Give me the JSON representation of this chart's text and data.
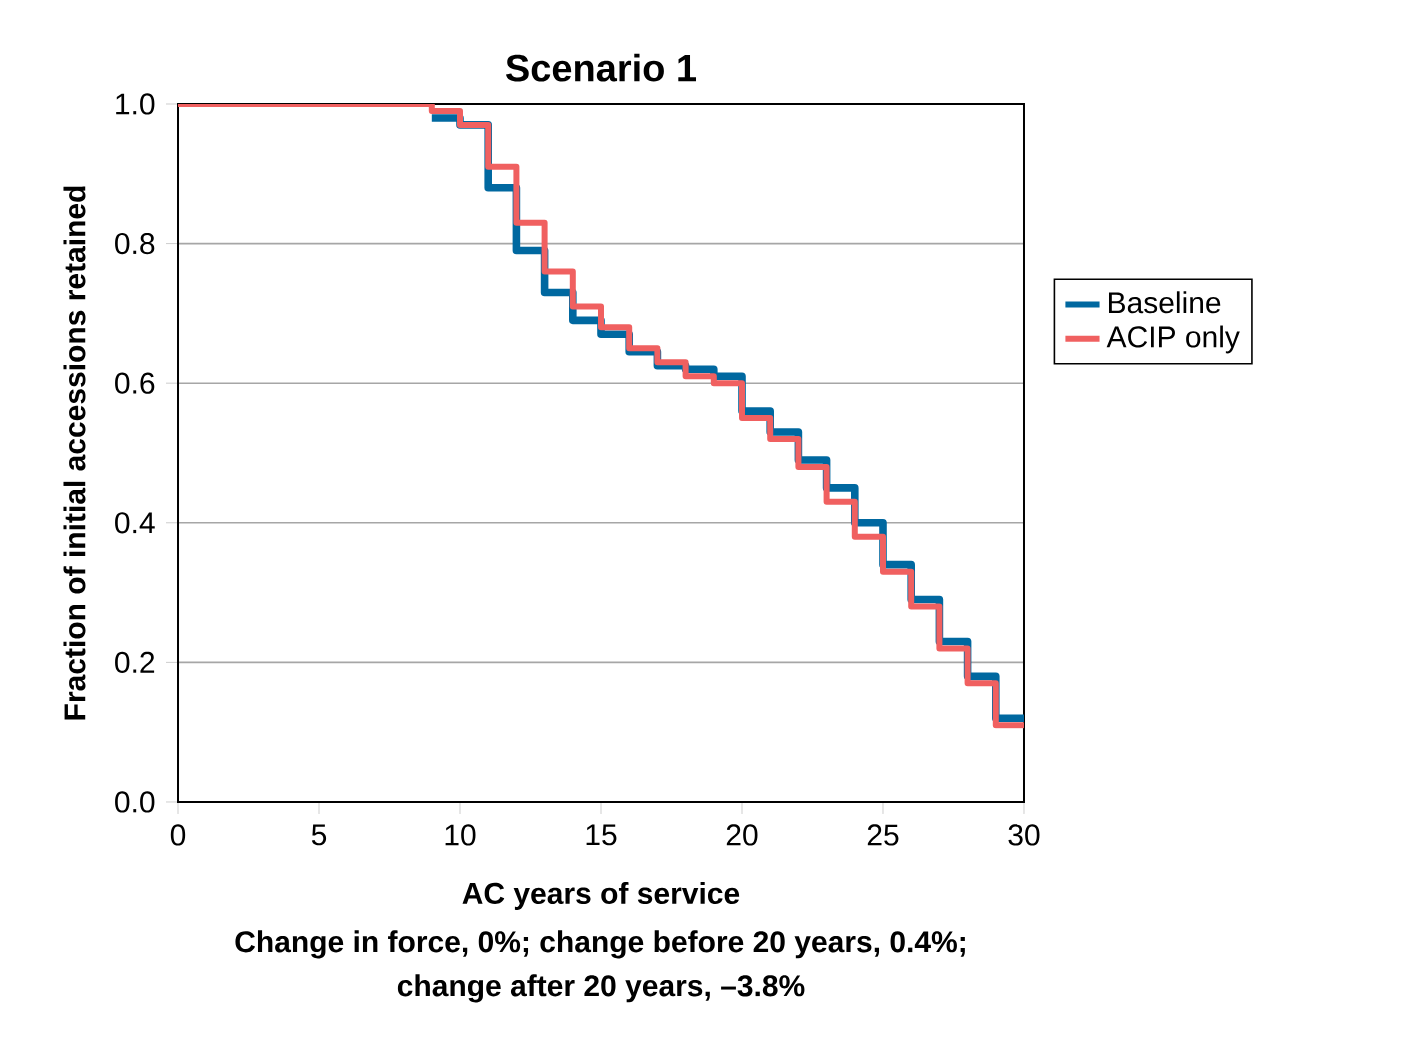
{
  "chart_data": {
    "type": "step",
    "title": "Scenario 1",
    "xlabel": "AC years of service",
    "ylabel": "Fraction of initial accessions retained",
    "annotations": [
      "Change in force, 0%; change before 20 years, 0.4%;",
      "change after 20 years, –3.8%"
    ],
    "x": [
      0,
      9,
      10,
      11,
      12,
      13,
      14,
      15,
      16,
      17,
      18,
      19,
      20,
      21,
      22,
      23,
      24,
      25,
      26,
      27,
      28,
      29,
      30
    ],
    "series": [
      {
        "name": "Baseline",
        "color": "#0068a0",
        "values": [
          null,
          0.98,
          0.97,
          0.88,
          0.79,
          0.73,
          0.69,
          0.67,
          0.645,
          0.625,
          0.62,
          0.61,
          0.56,
          0.53,
          0.49,
          0.45,
          0.4,
          0.34,
          0.29,
          0.23,
          0.18,
          0.12,
          0.12
        ]
      },
      {
        "name": "ACIP only",
        "color": "#f06060",
        "values": [
          1.0,
          0.99,
          0.97,
          0.91,
          0.83,
          0.76,
          0.71,
          0.68,
          0.65,
          0.63,
          0.61,
          0.6,
          0.55,
          0.52,
          0.48,
          0.43,
          0.38,
          0.33,
          0.28,
          0.22,
          0.17,
          0.11,
          0.11
        ]
      }
    ],
    "xlim": [
      0,
      30
    ],
    "ylim": [
      0,
      1
    ],
    "xticks": [
      0,
      5,
      10,
      15,
      20,
      25,
      30
    ],
    "yticks": [
      {
        "value": 0,
        "label": "0.0"
      },
      {
        "value": 0.2,
        "label": "0.2"
      },
      {
        "value": 0.4,
        "label": "0.4"
      },
      {
        "value": 0.6,
        "label": "0.6"
      },
      {
        "value": 0.8,
        "label": "0.8"
      },
      {
        "value": 1,
        "label": "1.0"
      }
    ],
    "grid": "y",
    "legend": "right"
  }
}
